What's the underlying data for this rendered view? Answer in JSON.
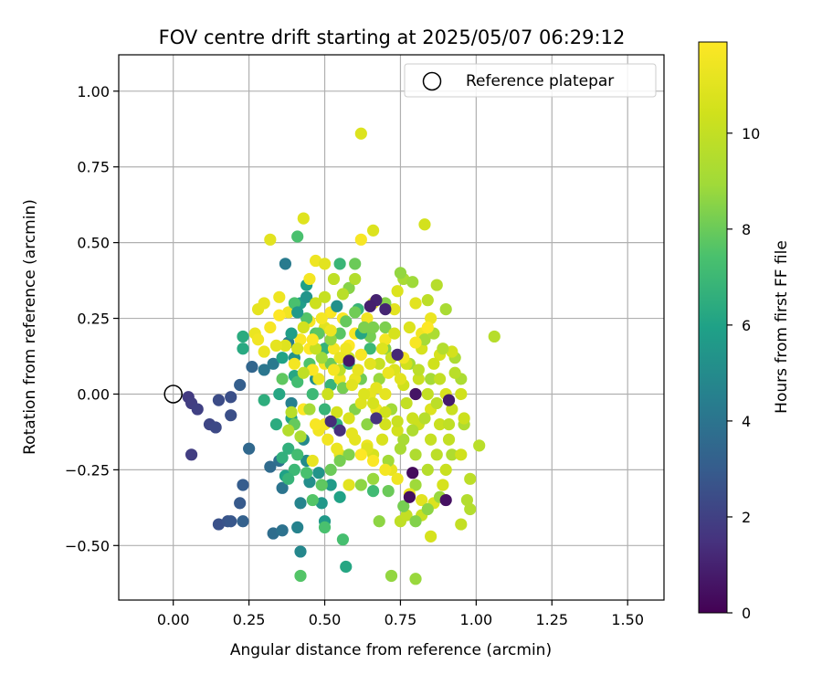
{
  "chart_data": {
    "type": "scatter",
    "title": "FOV centre drift starting at 2025/05/07 06:29:12",
    "xlabel": "Angular distance from reference (arcmin)",
    "ylabel": "Rotation from reference (arcmin)",
    "xlim": [
      -0.18,
      1.62
    ],
    "ylim": [
      -0.68,
      1.12
    ],
    "xticks": [
      0.0,
      0.25,
      0.5,
      0.75,
      1.0,
      1.25,
      1.5
    ],
    "xtick_labels": [
      "0.00",
      "0.25",
      "0.50",
      "0.75",
      "1.00",
      "1.25",
      "1.50"
    ],
    "yticks": [
      -0.5,
      -0.25,
      0.0,
      0.25,
      0.5,
      0.75,
      1.0
    ],
    "ytick_labels": [
      "−0.50",
      "−0.25",
      "0.00",
      "0.25",
      "0.50",
      "0.75",
      "1.00"
    ],
    "grid": true,
    "legend": {
      "position": "top-right",
      "label": "Reference platepar"
    },
    "reference_point": {
      "x": 0.0,
      "y": 0.0
    },
    "colorbar": {
      "label": "Hours from first FF file",
      "colormap": "viridis",
      "range": [
        0,
        11.9
      ],
      "ticks": [
        0,
        2,
        4,
        6,
        8,
        10
      ],
      "tick_labels": [
        "0",
        "2",
        "4",
        "6",
        "8",
        "10"
      ]
    },
    "points": [
      [
        0.05,
        -0.01,
        1.8
      ],
      [
        0.06,
        -0.03,
        1.9
      ],
      [
        0.08,
        -0.05,
        2.0
      ],
      [
        0.06,
        -0.2,
        1.9
      ],
      [
        0.12,
        -0.1,
        2.2
      ],
      [
        0.14,
        -0.11,
        2.3
      ],
      [
        0.15,
        -0.02,
        2.4
      ],
      [
        0.19,
        -0.01,
        2.5
      ],
      [
        0.19,
        -0.07,
        2.5
      ],
      [
        0.15,
        -0.43,
        2.6
      ],
      [
        0.18,
        -0.42,
        2.7
      ],
      [
        0.19,
        -0.42,
        2.8
      ],
      [
        0.22,
        -0.36,
        2.9
      ],
      [
        0.23,
        -0.3,
        3.0
      ],
      [
        0.22,
        0.03,
        3.1
      ],
      [
        0.23,
        -0.42,
        3.2
      ],
      [
        0.26,
        0.09,
        3.4
      ],
      [
        0.25,
        -0.18,
        3.5
      ],
      [
        0.32,
        -0.24,
        3.6
      ],
      [
        0.33,
        -0.46,
        3.7
      ],
      [
        0.35,
        -0.22,
        3.8
      ],
      [
        0.36,
        -0.45,
        3.9
      ],
      [
        0.36,
        -0.31,
        4.0
      ],
      [
        0.3,
        0.08,
        4.1
      ],
      [
        0.33,
        0.1,
        4.2
      ],
      [
        0.37,
        0.43,
        4.3
      ],
      [
        0.38,
        0.17,
        4.4
      ],
      [
        0.39,
        -0.03,
        4.5
      ],
      [
        0.41,
        -0.44,
        4.6
      ],
      [
        0.42,
        -0.36,
        4.7
      ],
      [
        0.42,
        -0.52,
        4.8
      ],
      [
        0.43,
        -0.15,
        4.9
      ],
      [
        0.44,
        -0.22,
        5.0
      ],
      [
        0.45,
        -0.29,
        5.1
      ],
      [
        0.47,
        0.05,
        5.2
      ],
      [
        0.4,
        0.12,
        5.3
      ],
      [
        0.48,
        -0.26,
        5.4
      ],
      [
        0.49,
        -0.36,
        5.5
      ],
      [
        0.5,
        -0.42,
        5.6
      ],
      [
        0.52,
        -0.3,
        5.7
      ],
      [
        0.42,
        0.3,
        5.8
      ],
      [
        0.44,
        0.36,
        5.9
      ],
      [
        0.37,
        -0.27,
        6.0
      ],
      [
        0.39,
        -0.08,
        6.1
      ],
      [
        0.4,
        0.06,
        6.2
      ],
      [
        0.23,
        0.15,
        6.3
      ],
      [
        0.23,
        0.19,
        6.4
      ],
      [
        0.3,
        -0.02,
        6.5
      ],
      [
        0.38,
        -0.18,
        6.6
      ],
      [
        0.5,
        0.15,
        6.7
      ],
      [
        0.52,
        0.03,
        6.8
      ],
      [
        0.55,
        0.43,
        6.9
      ],
      [
        0.55,
        -0.34,
        6.0
      ],
      [
        0.57,
        -0.57,
        6.2
      ],
      [
        0.61,
        0.28,
        6.8
      ],
      [
        0.65,
        0.15,
        7.0
      ],
      [
        0.66,
        -0.32,
        7.1
      ],
      [
        0.56,
        -0.48,
        7.3
      ],
      [
        0.5,
        -0.44,
        7.4
      ],
      [
        0.42,
        -0.6,
        7.6
      ],
      [
        0.36,
        0.05,
        7.8
      ],
      [
        0.4,
        -0.1,
        7.9
      ],
      [
        0.41,
        0.52,
        7.4
      ],
      [
        0.45,
        0.1,
        7.5
      ],
      [
        0.47,
        0.2,
        7.6
      ],
      [
        0.55,
        0.2,
        7.7
      ],
      [
        0.6,
        0.43,
        8.0
      ],
      [
        0.62,
        0.05,
        8.1
      ],
      [
        0.65,
        0.19,
        8.2
      ],
      [
        0.7,
        0.22,
        8.3
      ],
      [
        0.7,
        0.15,
        8.4
      ],
      [
        0.68,
        -0.42,
        8.6
      ],
      [
        0.72,
        -0.6,
        8.7
      ],
      [
        0.8,
        -0.61,
        8.8
      ],
      [
        0.8,
        -0.3,
        8.9
      ],
      [
        0.78,
        0.1,
        9.0
      ],
      [
        0.85,
        0.05,
        9.1
      ],
      [
        0.9,
        0.28,
        9.2
      ],
      [
        0.95,
        0.05,
        9.3
      ],
      [
        0.96,
        -0.1,
        9.4
      ],
      [
        0.97,
        -0.35,
        9.5
      ],
      [
        1.06,
        0.19,
        9.6
      ],
      [
        1.01,
        -0.17,
        9.7
      ],
      [
        0.98,
        -0.38,
        9.5
      ],
      [
        0.92,
        -0.2,
        9.4
      ],
      [
        0.93,
        0.12,
        9.3
      ],
      [
        0.76,
        0.38,
        9.2
      ],
      [
        0.87,
        0.36,
        9.6
      ],
      [
        0.84,
        0.31,
        9.8
      ],
      [
        0.75,
        -0.42,
        9.9
      ],
      [
        0.77,
        -0.4,
        10.0
      ],
      [
        0.82,
        -0.4,
        10.1
      ],
      [
        0.85,
        -0.47,
        10.6
      ],
      [
        0.9,
        -0.25,
        10.2
      ],
      [
        0.95,
        -0.43,
        10.0
      ],
      [
        0.98,
        -0.28,
        9.8
      ],
      [
        0.81,
        -0.1,
        10.3
      ],
      [
        0.76,
        0.03,
        10.4
      ],
      [
        0.7,
        -0.1,
        10.5
      ],
      [
        0.66,
        -0.2,
        10.6
      ],
      [
        0.73,
        0.08,
        10.8
      ],
      [
        0.58,
        -0.3,
        11.0
      ],
      [
        0.6,
        -0.15,
        11.1
      ],
      [
        0.64,
        -0.17,
        11.3
      ],
      [
        0.67,
        -0.05,
        11.4
      ],
      [
        0.72,
        -0.25,
        11.2
      ],
      [
        0.55,
        -0.2,
        11.0
      ],
      [
        0.48,
        -0.12,
        11.5
      ],
      [
        0.5,
        -0.1,
        11.6
      ],
      [
        0.46,
        -0.22,
        11.2
      ],
      [
        0.62,
        0.86,
        10.8
      ],
      [
        0.43,
        0.58,
        10.9
      ],
      [
        0.32,
        0.51,
        11.0
      ],
      [
        0.28,
        0.28,
        11.1
      ],
      [
        0.3,
        0.3,
        11.2
      ],
      [
        0.27,
        0.2,
        11.3
      ],
      [
        0.35,
        0.32,
        11.4
      ],
      [
        0.38,
        0.27,
        11.5
      ],
      [
        0.45,
        0.38,
        11.6
      ],
      [
        0.47,
        0.44,
        11.4
      ],
      [
        0.5,
        0.43,
        11.0
      ],
      [
        0.62,
        0.51,
        11.7
      ],
      [
        0.66,
        0.54,
        10.8
      ],
      [
        0.83,
        0.56,
        10.5
      ],
      [
        0.74,
        0.34,
        10.8
      ],
      [
        0.8,
        0.3,
        11.0
      ],
      [
        0.85,
        0.25,
        11.3
      ],
      [
        0.82,
        0.2,
        11.5
      ],
      [
        0.7,
        0.18,
        11.6
      ],
      [
        0.6,
        0.2,
        11.7
      ],
      [
        0.52,
        0.27,
        11.8
      ],
      [
        0.45,
        0.24,
        11.7
      ],
      [
        0.4,
        0.1,
        11.6
      ],
      [
        0.42,
        0.18,
        11.8
      ],
      [
        0.45,
        0.15,
        11.9
      ],
      [
        0.5,
        0.1,
        11.5
      ],
      [
        0.55,
        0.05,
        11.4
      ],
      [
        0.6,
        0.05,
        11.3
      ],
      [
        0.65,
        0.0,
        11.2
      ],
      [
        0.7,
        0.0,
        11.1
      ],
      [
        0.75,
        0.05,
        11.0
      ],
      [
        0.8,
        0.0,
        10.9
      ],
      [
        0.85,
        -0.05,
        10.8
      ],
      [
        0.9,
        0.0,
        10.7
      ],
      [
        0.88,
        0.13,
        10.6
      ],
      [
        0.92,
        0.14,
        10.5
      ],
      [
        0.95,
        0.0,
        10.4
      ],
      [
        0.96,
        -0.08,
        10.3
      ],
      [
        0.72,
        0.12,
        10.2
      ],
      [
        0.68,
        0.1,
        10.1
      ],
      [
        0.58,
        0.12,
        10.0
      ],
      [
        0.55,
        0.08,
        9.9
      ],
      [
        0.5,
        0.22,
        11.0
      ],
      [
        0.48,
        0.05,
        11.3
      ],
      [
        0.53,
        0.15,
        11.6
      ],
      [
        0.56,
        0.25,
        11.8
      ],
      [
        0.58,
        0.16,
        11.9
      ],
      [
        0.62,
        0.13,
        11.7
      ],
      [
        0.64,
        0.25,
        11.5
      ],
      [
        0.66,
        0.3,
        11.2
      ],
      [
        0.73,
        0.28,
        11.0
      ],
      [
        0.78,
        0.22,
        10.8
      ],
      [
        0.82,
        0.15,
        10.6
      ],
      [
        0.86,
        0.1,
        10.4
      ],
      [
        0.88,
        -0.1,
        10.2
      ],
      [
        0.91,
        -0.15,
        10.0
      ],
      [
        0.87,
        -0.2,
        9.8
      ],
      [
        0.84,
        -0.25,
        9.6
      ],
      [
        0.8,
        -0.2,
        9.4
      ],
      [
        0.76,
        -0.15,
        9.2
      ],
      [
        0.72,
        -0.05,
        9.0
      ],
      [
        0.68,
        0.05,
        8.8
      ],
      [
        0.64,
        -0.1,
        8.6
      ],
      [
        0.6,
        -0.05,
        8.4
      ],
      [
        0.56,
        0.02,
        8.2
      ],
      [
        0.52,
        0.1,
        8.0
      ],
      [
        0.48,
        0.2,
        7.8
      ],
      [
        0.44,
        0.25,
        7.6
      ],
      [
        0.4,
        0.3,
        7.4
      ],
      [
        0.41,
        0.04,
        7.2
      ],
      [
        0.46,
        0.0,
        7.0
      ],
      [
        0.5,
        -0.05,
        6.8
      ],
      [
        0.54,
        -0.1,
        6.6
      ],
      [
        0.58,
        0.1,
        6.4
      ],
      [
        0.62,
        0.2,
        6.2
      ],
      [
        0.66,
        0.22,
        8.3
      ],
      [
        0.7,
        0.3,
        8.5
      ],
      [
        0.75,
        0.4,
        8.7
      ],
      [
        0.79,
        0.37,
        8.9
      ],
      [
        0.83,
        0.18,
        9.1
      ],
      [
        0.86,
        0.2,
        9.3
      ],
      [
        0.89,
        0.15,
        9.5
      ],
      [
        0.93,
        0.07,
        9.7
      ],
      [
        0.91,
        -0.1,
        9.9
      ],
      [
        0.85,
        -0.15,
        10.1
      ],
      [
        0.79,
        -0.08,
        10.3
      ],
      [
        0.74,
        -0.12,
        10.5
      ],
      [
        0.69,
        -0.15,
        10.7
      ],
      [
        0.64,
        -0.18,
        10.9
      ],
      [
        0.59,
        -0.13,
        11.1
      ],
      [
        0.54,
        -0.18,
        11.3
      ],
      [
        0.51,
        -0.15,
        11.5
      ],
      [
        0.47,
        -0.1,
        11.7
      ],
      [
        0.43,
        -0.05,
        11.9
      ],
      [
        0.46,
        0.08,
        11.8
      ],
      [
        0.53,
        0.08,
        11.6
      ],
      [
        0.57,
        0.15,
        11.4
      ],
      [
        0.61,
        0.08,
        11.2
      ],
      [
        0.65,
        0.1,
        11.0
      ],
      [
        0.69,
        0.15,
        10.8
      ],
      [
        0.73,
        0.2,
        10.6
      ],
      [
        0.77,
        0.1,
        10.4
      ],
      [
        0.81,
        0.05,
        10.2
      ],
      [
        0.84,
        0.0,
        10.0
      ],
      [
        0.87,
        -0.03,
        9.8
      ],
      [
        0.83,
        -0.08,
        9.6
      ],
      [
        0.79,
        -0.12,
        9.4
      ],
      [
        0.75,
        -0.18,
        9.2
      ],
      [
        0.71,
        -0.22,
        9.0
      ],
      [
        0.66,
        -0.28,
        8.8
      ],
      [
        0.62,
        -0.3,
        8.6
      ],
      [
        0.58,
        -0.2,
        8.4
      ],
      [
        0.55,
        -0.22,
        8.2
      ],
      [
        0.52,
        -0.25,
        8.0
      ],
      [
        0.49,
        -0.3,
        7.8
      ],
      [
        0.46,
        -0.35,
        7.6
      ],
      [
        0.44,
        -0.26,
        7.4
      ],
      [
        0.41,
        -0.2,
        7.2
      ],
      [
        0.4,
        -0.25,
        7.0
      ],
      [
        0.38,
        -0.28,
        6.8
      ],
      [
        0.36,
        -0.21,
        6.6
      ],
      [
        0.34,
        -0.1,
        6.4
      ],
      [
        0.35,
        0.0,
        6.2
      ],
      [
        0.36,
        0.12,
        6.0
      ],
      [
        0.39,
        0.2,
        5.8
      ],
      [
        0.41,
        0.27,
        5.6
      ],
      [
        0.44,
        0.32,
        5.4
      ],
      [
        0.54,
        0.29,
        5.2
      ],
      [
        0.57,
        0.24,
        7.9
      ],
      [
        0.6,
        0.27,
        8.1
      ],
      [
        0.63,
        0.22,
        8.3
      ],
      [
        0.58,
        0.35,
        8.5
      ],
      [
        0.52,
        0.18,
        8.7
      ],
      [
        0.49,
        0.12,
        8.9
      ],
      [
        0.45,
        -0.05,
        9.1
      ],
      [
        0.42,
        -0.14,
        9.3
      ],
      [
        0.38,
        -0.12,
        9.5
      ],
      [
        0.39,
        -0.06,
        9.7
      ],
      [
        0.43,
        0.07,
        9.9
      ],
      [
        0.47,
        0.15,
        10.1
      ],
      [
        0.51,
        0.0,
        10.3
      ],
      [
        0.54,
        -0.06,
        10.5
      ],
      [
        0.58,
        -0.08,
        10.7
      ],
      [
        0.62,
        -0.03,
        10.9
      ],
      [
        0.67,
        0.02,
        11.1
      ],
      [
        0.71,
        0.07,
        11.3
      ],
      [
        0.76,
        0.12,
        11.5
      ],
      [
        0.8,
        0.17,
        11.7
      ],
      [
        0.84,
        0.22,
        11.9
      ],
      [
        0.88,
        0.05,
        10.0
      ],
      [
        0.92,
        -0.05,
        10.2
      ],
      [
        0.95,
        -0.2,
        10.4
      ],
      [
        0.89,
        -0.3,
        10.6
      ],
      [
        0.86,
        -0.36,
        10.8
      ],
      [
        0.82,
        -0.35,
        11.0
      ],
      [
        0.78,
        -0.33,
        11.2
      ],
      [
        0.74,
        -0.28,
        11.4
      ],
      [
        0.7,
        -0.25,
        11.6
      ],
      [
        0.66,
        -0.22,
        11.8
      ],
      [
        0.62,
        -0.2,
        11.9
      ],
      [
        0.6,
        0.38,
        9.5
      ],
      [
        0.56,
        0.33,
        9.7
      ],
      [
        0.53,
        0.38,
        9.9
      ],
      [
        0.5,
        0.32,
        10.1
      ],
      [
        0.47,
        0.3,
        10.3
      ],
      [
        0.43,
        0.22,
        10.5
      ],
      [
        0.41,
        0.15,
        10.7
      ],
      [
        0.37,
        0.16,
        10.9
      ],
      [
        0.34,
        0.16,
        11.1
      ],
      [
        0.3,
        0.14,
        11.3
      ],
      [
        0.28,
        0.18,
        11.5
      ],
      [
        0.32,
        0.22,
        11.7
      ],
      [
        0.35,
        0.26,
        11.9
      ],
      [
        0.46,
        0.18,
        11.8
      ],
      [
        0.49,
        0.25,
        11.6
      ],
      [
        0.52,
        0.21,
        11.4
      ],
      [
        0.55,
        0.12,
        11.2
      ],
      [
        0.59,
        0.03,
        11.0
      ],
      [
        0.63,
        0.0,
        10.8
      ],
      [
        0.66,
        -0.03,
        10.6
      ],
      [
        0.7,
        -0.06,
        10.4
      ],
      [
        0.74,
        -0.09,
        10.2
      ],
      [
        0.77,
        -0.03,
        10.0
      ],
      [
        0.81,
        0.08,
        9.8
      ],
      [
        0.71,
        -0.32,
        8.0
      ],
      [
        0.76,
        -0.37,
        8.2
      ],
      [
        0.8,
        -0.42,
        8.4
      ],
      [
        0.84,
        -0.38,
        8.6
      ],
      [
        0.88,
        -0.34,
        8.8
      ],
      [
        0.79,
        -0.26,
        0.3
      ],
      [
        0.78,
        -0.34,
        0.4
      ],
      [
        0.9,
        -0.35,
        0.5
      ],
      [
        0.91,
        -0.02,
        0.8
      ],
      [
        0.8,
        0.0,
        0.6
      ],
      [
        0.67,
        0.31,
        1.0
      ],
      [
        0.74,
        0.13,
        1.2
      ],
      [
        0.65,
        0.29,
        0.9
      ],
      [
        0.7,
        0.28,
        1.1
      ],
      [
        0.58,
        0.11,
        0.7
      ],
      [
        0.52,
        -0.09,
        1.3
      ],
      [
        0.55,
        -0.12,
        1.4
      ],
      [
        0.67,
        -0.08,
        1.5
      ]
    ]
  }
}
